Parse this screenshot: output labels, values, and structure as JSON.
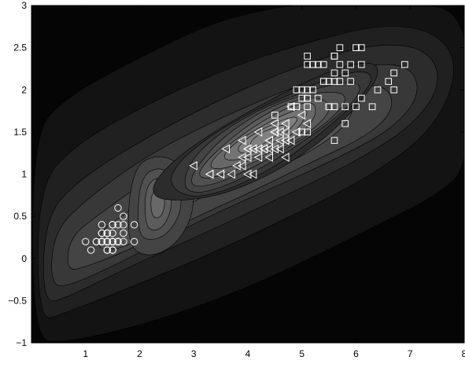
{
  "chart_data": {
    "type": "scatter",
    "title": "",
    "xlabel": "",
    "ylabel": "",
    "xlim": [
      0,
      8
    ],
    "ylim": [
      -1,
      3
    ],
    "x_ticks": [
      "1",
      "2",
      "3",
      "4",
      "5",
      "6",
      "7",
      "8"
    ],
    "y_ticks": [
      "−1",
      "−0.5",
      "0",
      "0.5",
      "1",
      "1.5",
      "2",
      "2.5",
      "3"
    ],
    "grid": false,
    "legend": "none",
    "background": "filled contour of a density surface (grayscale, darker = lower)",
    "colors": {
      "frame": "#000000",
      "marker": "#ffffff",
      "contour_levels": [
        "#050505",
        "#131313",
        "#202020",
        "#2c2c2c",
        "#383838",
        "#444444",
        "#505050",
        "#5c5c5c",
        "#686868",
        "#747474",
        "#808080"
      ]
    },
    "series": [
      {
        "marker": "circle",
        "points": [
          [
            1.4,
            0.2
          ],
          [
            1.4,
            0.2
          ],
          [
            1.3,
            0.2
          ],
          [
            1.5,
            0.2
          ],
          [
            1.4,
            0.2
          ],
          [
            1.7,
            0.4
          ],
          [
            1.4,
            0.3
          ],
          [
            1.5,
            0.2
          ],
          [
            1.4,
            0.2
          ],
          [
            1.5,
            0.1
          ],
          [
            1.5,
            0.2
          ],
          [
            1.6,
            0.2
          ],
          [
            1.4,
            0.1
          ],
          [
            1.1,
            0.1
          ],
          [
            1.2,
            0.2
          ],
          [
            1.5,
            0.4
          ],
          [
            1.3,
            0.4
          ],
          [
            1.4,
            0.3
          ],
          [
            1.7,
            0.3
          ],
          [
            1.5,
            0.3
          ],
          [
            1.7,
            0.2
          ],
          [
            1.5,
            0.4
          ],
          [
            1.0,
            0.2
          ],
          [
            1.7,
            0.5
          ],
          [
            1.9,
            0.2
          ],
          [
            1.6,
            0.2
          ],
          [
            1.6,
            0.4
          ],
          [
            1.5,
            0.2
          ],
          [
            1.4,
            0.2
          ],
          [
            1.6,
            0.2
          ],
          [
            1.6,
            0.2
          ],
          [
            1.5,
            0.4
          ],
          [
            1.5,
            0.1
          ],
          [
            1.4,
            0.2
          ],
          [
            1.5,
            0.2
          ],
          [
            1.2,
            0.2
          ],
          [
            1.3,
            0.2
          ],
          [
            1.4,
            0.1
          ],
          [
            1.3,
            0.2
          ],
          [
            1.5,
            0.2
          ],
          [
            1.3,
            0.3
          ],
          [
            1.3,
            0.3
          ],
          [
            1.3,
            0.2
          ],
          [
            1.6,
            0.6
          ],
          [
            1.9,
            0.4
          ],
          [
            1.4,
            0.3
          ],
          [
            1.6,
            0.2
          ],
          [
            1.4,
            0.2
          ],
          [
            1.5,
            0.2
          ],
          [
            1.4,
            0.2
          ]
        ]
      },
      {
        "marker": "triangle-left",
        "points": [
          [
            4.7,
            1.4
          ],
          [
            4.5,
            1.5
          ],
          [
            4.9,
            1.5
          ],
          [
            4.0,
            1.3
          ],
          [
            4.6,
            1.5
          ],
          [
            4.5,
            1.3
          ],
          [
            4.7,
            1.6
          ],
          [
            3.3,
            1.0
          ],
          [
            4.6,
            1.3
          ],
          [
            3.9,
            1.4
          ],
          [
            3.5,
            1.0
          ],
          [
            4.2,
            1.5
          ],
          [
            4.0,
            1.0
          ],
          [
            4.7,
            1.4
          ],
          [
            3.6,
            1.3
          ],
          [
            4.4,
            1.4
          ],
          [
            4.5,
            1.5
          ],
          [
            4.1,
            1.0
          ],
          [
            4.5,
            1.5
          ],
          [
            3.9,
            1.1
          ],
          [
            4.8,
            1.8
          ],
          [
            4.0,
            1.3
          ],
          [
            4.9,
            1.5
          ],
          [
            4.7,
            1.2
          ],
          [
            4.3,
            1.3
          ],
          [
            4.4,
            1.4
          ],
          [
            4.8,
            1.4
          ],
          [
            5.0,
            1.7
          ],
          [
            4.5,
            1.5
          ],
          [
            3.5,
            1.0
          ],
          [
            3.8,
            1.1
          ],
          [
            3.7,
            1.0
          ],
          [
            3.9,
            1.2
          ],
          [
            5.1,
            1.6
          ],
          [
            4.5,
            1.5
          ],
          [
            4.5,
            1.6
          ],
          [
            4.7,
            1.5
          ],
          [
            4.4,
            1.3
          ],
          [
            4.1,
            1.3
          ],
          [
            4.0,
            1.3
          ],
          [
            4.4,
            1.2
          ],
          [
            4.6,
            1.4
          ],
          [
            4.0,
            1.2
          ],
          [
            3.3,
            1.0
          ],
          [
            4.2,
            1.3
          ],
          [
            4.2,
            1.2
          ],
          [
            4.2,
            1.3
          ],
          [
            4.3,
            1.3
          ],
          [
            3.0,
            1.1
          ],
          [
            4.1,
            1.3
          ]
        ]
      },
      {
        "marker": "square",
        "points": [
          [
            6.0,
            2.5
          ],
          [
            5.1,
            1.9
          ],
          [
            5.9,
            2.1
          ],
          [
            5.6,
            1.8
          ],
          [
            5.8,
            2.2
          ],
          [
            6.6,
            2.1
          ],
          [
            4.5,
            1.7
          ],
          [
            6.3,
            1.8
          ],
          [
            5.8,
            1.8
          ],
          [
            6.1,
            2.5
          ],
          [
            5.1,
            2.0
          ],
          [
            5.3,
            1.9
          ],
          [
            5.5,
            2.1
          ],
          [
            5.0,
            2.0
          ],
          [
            5.1,
            2.4
          ],
          [
            5.3,
            2.3
          ],
          [
            5.5,
            1.8
          ],
          [
            6.7,
            2.2
          ],
          [
            6.9,
            2.3
          ],
          [
            5.0,
            1.5
          ],
          [
            5.7,
            2.3
          ],
          [
            4.9,
            2.0
          ],
          [
            6.7,
            2.0
          ],
          [
            4.9,
            1.8
          ],
          [
            5.7,
            2.1
          ],
          [
            6.0,
            1.8
          ],
          [
            4.8,
            1.8
          ],
          [
            4.9,
            1.8
          ],
          [
            5.6,
            2.1
          ],
          [
            5.8,
            1.6
          ],
          [
            6.1,
            1.9
          ],
          [
            6.4,
            2.0
          ],
          [
            5.6,
            2.2
          ],
          [
            5.1,
            1.5
          ],
          [
            5.6,
            1.4
          ],
          [
            6.1,
            2.3
          ],
          [
            5.6,
            2.4
          ],
          [
            5.5,
            1.8
          ],
          [
            4.8,
            1.8
          ],
          [
            5.4,
            2.1
          ],
          [
            5.6,
            2.4
          ],
          [
            5.1,
            2.3
          ],
          [
            5.1,
            1.9
          ],
          [
            5.9,
            2.3
          ],
          [
            5.7,
            2.5
          ],
          [
            5.2,
            2.3
          ],
          [
            5.0,
            1.9
          ],
          [
            5.2,
            2.0
          ],
          [
            5.4,
            2.3
          ],
          [
            5.1,
            1.8
          ]
        ]
      }
    ]
  }
}
